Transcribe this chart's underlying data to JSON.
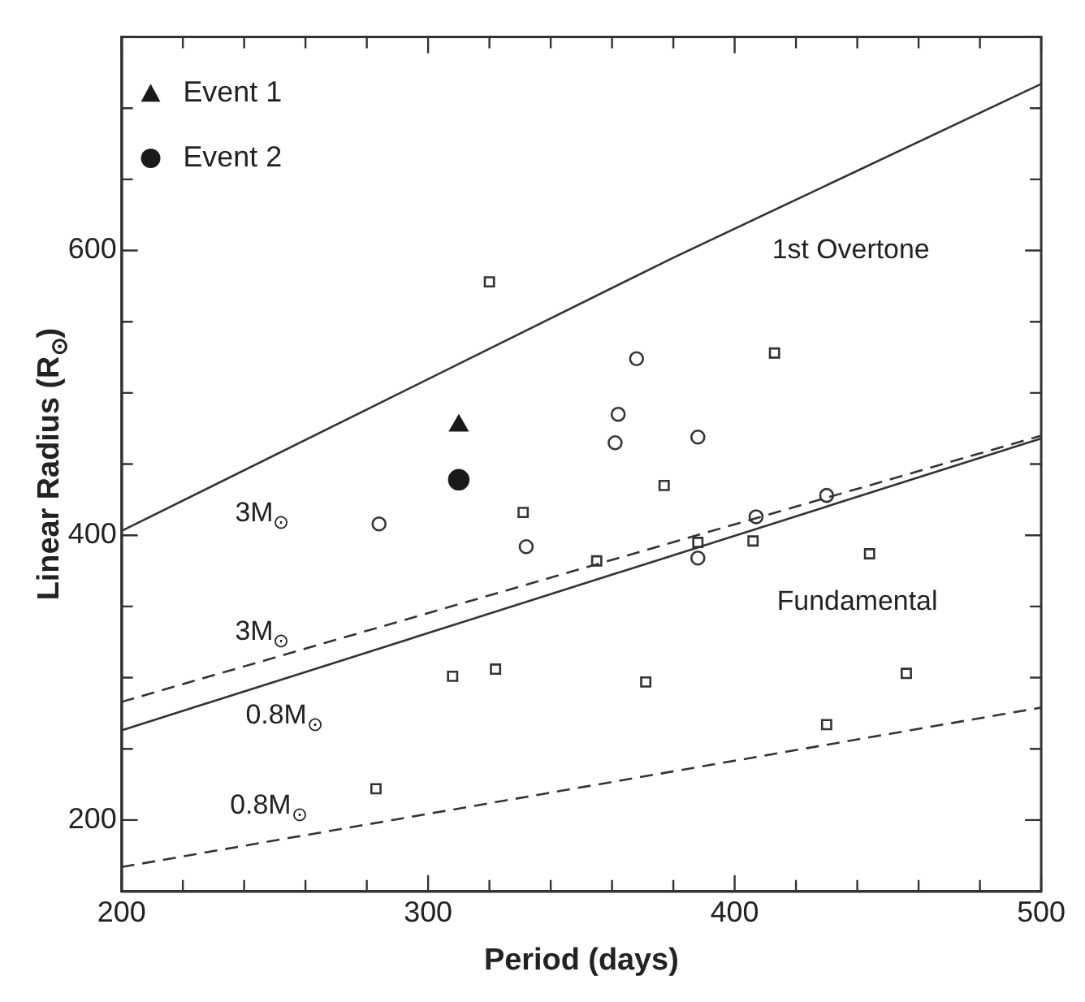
{
  "chart_data": {
    "type": "scatter",
    "xlabel": "Period (days)",
    "ylabel": "Linear Radius (R$_{⊙}$)",
    "xlim": [
      200,
      500
    ],
    "ylim": [
      150,
      750
    ],
    "xticks": [
      200,
      {
        "value": 220,
        "label": null
      },
      {
        "value": 240,
        "label": null
      },
      {
        "value": 260,
        "label": null
      },
      {
        "value": 280,
        "label": null
      },
      300,
      {
        "value": 320,
        "label": null
      },
      {
        "value": 340,
        "label": null
      },
      {
        "value": 360,
        "label": null
      },
      {
        "value": 380,
        "label": null
      },
      400,
      {
        "value": 420,
        "label": null
      },
      {
        "value": 440,
        "label": null
      },
      {
        "value": 460,
        "label": null
      },
      {
        "value": 480,
        "label": null
      },
      500
    ],
    "yticks": [
      {
        "value": 150,
        "label": null
      },
      200,
      {
        "value": 250,
        "label": null
      },
      {
        "value": 300,
        "label": null
      },
      {
        "value": 350,
        "label": null
      },
      400,
      {
        "value": 450,
        "label": null
      },
      {
        "value": 500,
        "label": null
      },
      {
        "value": 550,
        "label": null
      },
      600,
      {
        "value": 650,
        "label": null
      },
      {
        "value": 700,
        "label": null
      },
      {
        "value": 750,
        "label": null
      }
    ],
    "grid": false,
    "legend": "top left",
    "series": [
      {
        "name": "Event 1",
        "color": "#1a1a1a",
        "marker": "triangle",
        "x": [
          310
        ],
        "values": [
          477
        ]
      },
      {
        "name": "Event 2",
        "color": "#1a1a1a",
        "marker": "circle",
        "x": [
          310
        ],
        "values": [
          439
        ]
      },
      {
        "type": "scatter",
        "color": "#333333",
        "marker": "square",
        "x": [
          320,
          413,
          377,
          331,
          388,
          406,
          444,
          355,
          308,
          322,
          371,
          456,
          430,
          283
        ],
        "values": [
          578,
          528,
          435,
          416,
          395,
          396,
          387,
          382,
          301,
          306,
          297,
          303,
          267,
          222
        ]
      },
      {
        "type": "scatter",
        "color": "#333333",
        "marker": "circle",
        "x": [
          368,
          362,
          361,
          388,
          407,
          430,
          284,
          332,
          388
        ],
        "values": [
          524,
          485,
          465,
          469,
          413,
          428,
          408,
          392,
          384
        ]
      },
      {
        "type": "line",
        "color": "#333333",
        "marker": "none",
        "line_style": "solid",
        "x": [
          200,
          380,
          500
        ],
        "values": [
          403,
          595,
          717
        ]
      },
      {
        "type": "line",
        "color": "#333333",
        "marker": "none",
        "line_style": "solid",
        "x": [
          200,
          500
        ],
        "values": [
          263,
          468
        ]
      },
      {
        "type": "line",
        "color": "#333333",
        "marker": "none",
        "line_style": "dashed",
        "x": [
          200,
          500
        ],
        "values": [
          283,
          470
        ]
      },
      {
        "type": "line",
        "color": "#333333",
        "marker": "none",
        "line_style": "dashed",
        "x": [
          200,
          500
        ],
        "values": [
          167,
          279
        ]
      }
    ],
    "annotations": [
      "1st Overtone",
      "Fundamental",
      "3M$_{⊙}$",
      "3M$_{⊙}$",
      "0.8M$_{⊙}$",
      "0.8M$_{⊙}$"
    ]
  }
}
